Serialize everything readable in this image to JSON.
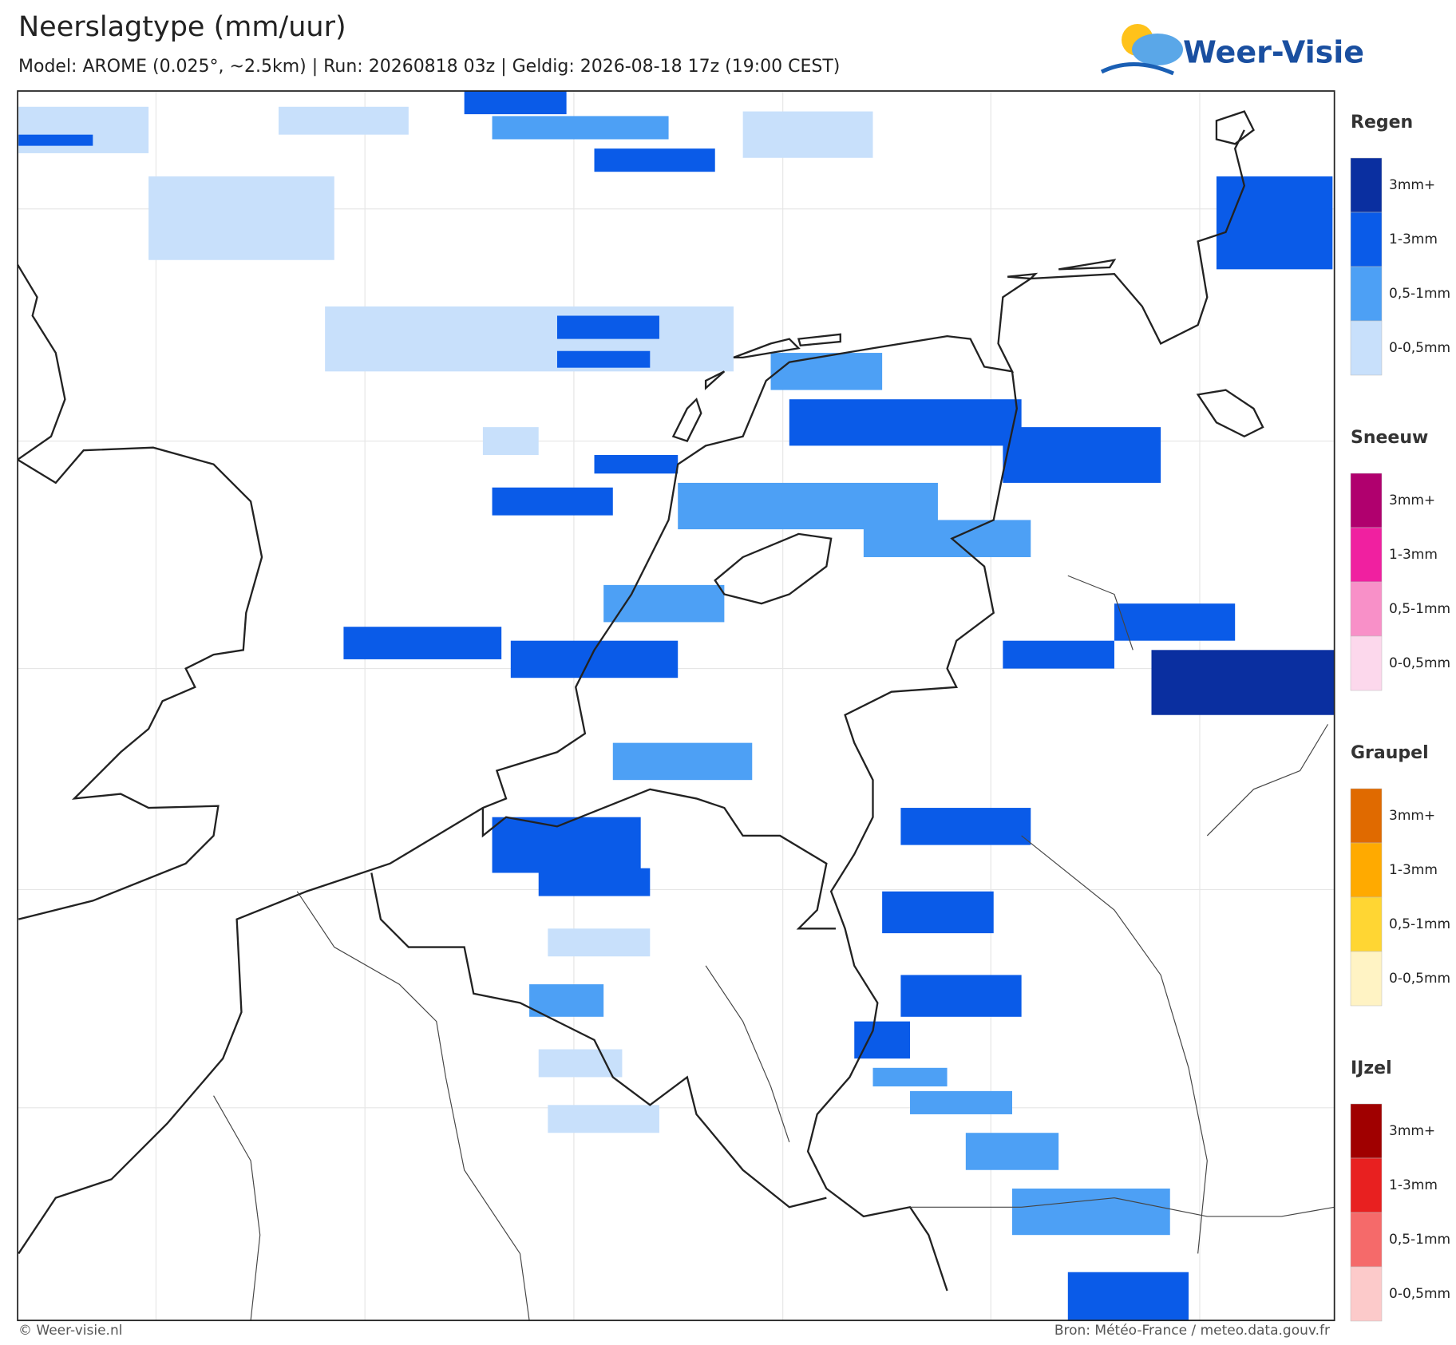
{
  "header": {
    "title": "Neerslagtype (mm/uur)",
    "subtitle": "Model: AROME (0.025°, ~2.5km)  |  Run: 20260818 03z  |  Geldig: 2026-08-18 17z (19:00 CEST)",
    "logo": "Weer-Visie"
  },
  "legend": [
    {
      "title": "Regen",
      "items": [
        {
          "label": "3mm+",
          "color": "#0a2fa0"
        },
        {
          "label": "1-3mm",
          "color": "#0a5be8"
        },
        {
          "label": "0,5-1mm",
          "color": "#4da0f5"
        },
        {
          "label": "0-0,5mm",
          "color": "#c8e0fb"
        }
      ]
    },
    {
      "title": "Sneeuw",
      "items": [
        {
          "label": "3mm+",
          "color": "#b0006e"
        },
        {
          "label": "1-3mm",
          "color": "#f020a0"
        },
        {
          "label": "0,5-1mm",
          "color": "#f890c8"
        },
        {
          "label": "0-0,5mm",
          "color": "#fcd8ec"
        }
      ]
    },
    {
      "title": "Graupel",
      "items": [
        {
          "label": "3mm+",
          "color": "#e06a00"
        },
        {
          "label": "1-3mm",
          "color": "#ffaa00"
        },
        {
          "label": "0,5-1mm",
          "color": "#ffd633"
        },
        {
          "label": "0-0,5mm",
          "color": "#fff3c4"
        }
      ]
    },
    {
      "title": "IJzel",
      "items": [
        {
          "label": "3mm+",
          "color": "#a00000"
        },
        {
          "label": "1-3mm",
          "color": "#e82020"
        },
        {
          "label": "0,5-1mm",
          "color": "#f56a6a"
        },
        {
          "label": "0-0,5mm",
          "color": "#fccaca"
        }
      ]
    }
  ],
  "footer": {
    "left": "© Weer-visie.nl",
    "right": "Bron: Météo-France / meteo.data.gouv.fr"
  }
}
